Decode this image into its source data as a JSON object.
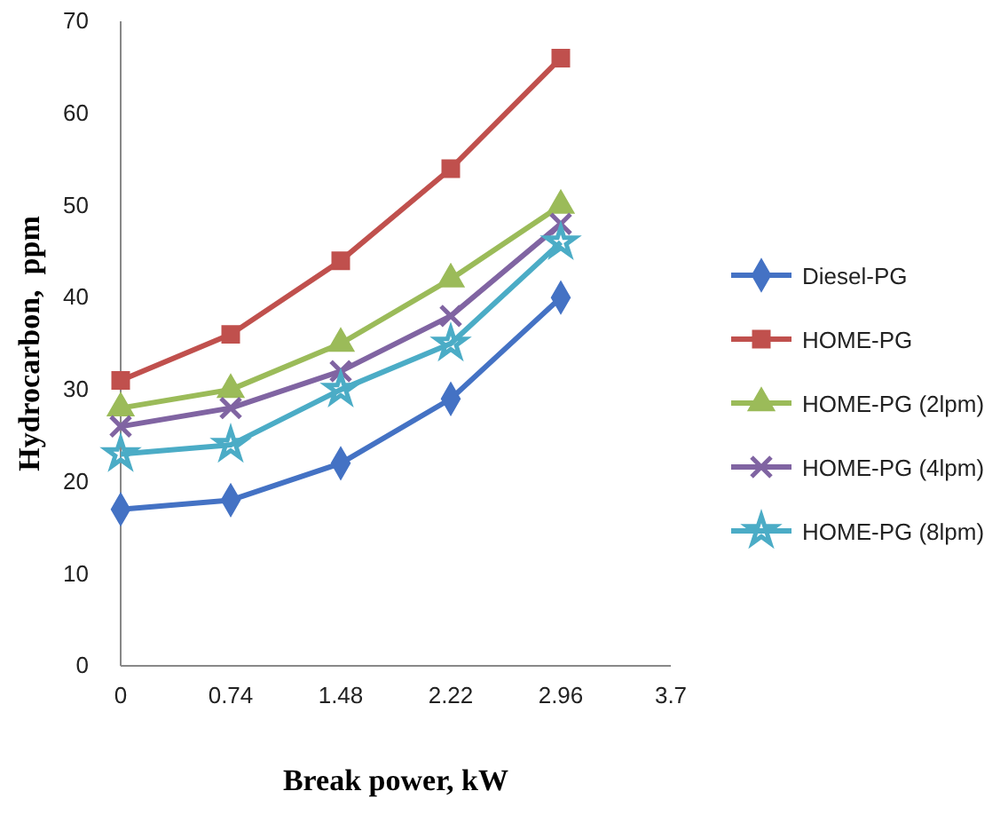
{
  "chart_data": {
    "type": "line",
    "xlabel": "Break power, kW",
    "ylabel": "Hydrocarbon,  ppm",
    "x": [
      0,
      0.74,
      1.48,
      2.22,
      2.96
    ],
    "xlim": [
      0,
      3.7
    ],
    "xticks": [
      0,
      0.74,
      1.48,
      2.22,
      2.96,
      3.7
    ],
    "ylim": [
      0,
      70
    ],
    "yticks": [
      0,
      10,
      20,
      30,
      40,
      50,
      60,
      70
    ],
    "grid": false,
    "legend": "right",
    "series": [
      {
        "name": "Diesel-PG",
        "color": "#4472c4",
        "marker": "diamond",
        "values": [
          17,
          18,
          22,
          29,
          40
        ]
      },
      {
        "name": "HOME-PG",
        "color": "#c0504d",
        "marker": "square",
        "values": [
          31,
          36,
          44,
          54,
          66
        ]
      },
      {
        "name": "HOME-PG (2lpm)",
        "color": "#9bbb59",
        "marker": "triangle",
        "values": [
          28,
          30,
          35,
          42,
          50
        ]
      },
      {
        "name": "HOME-PG (4lpm)",
        "color": "#8064a2",
        "marker": "cross",
        "values": [
          26,
          28,
          32,
          38,
          48
        ]
      },
      {
        "name": "HOME-PG (8lpm)",
        "color": "#4bacc6",
        "marker": "star",
        "values": [
          23,
          24,
          30,
          35,
          46
        ]
      }
    ]
  }
}
